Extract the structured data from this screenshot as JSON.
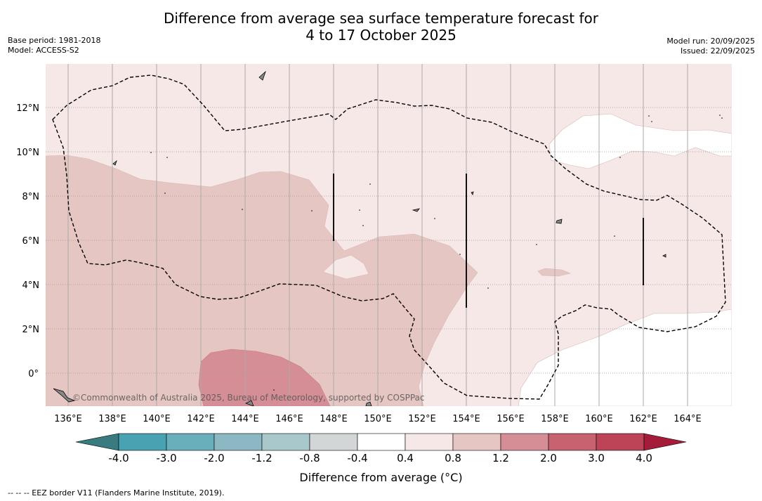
{
  "title": {
    "line1": "Difference from average sea surface temperature forecast for",
    "line2": "4 to 17 October 2025"
  },
  "meta": {
    "base_period": "Base period: 1981-2018",
    "model": "Model: ACCESS-S2",
    "model_run": "Model run: 20/09/2025",
    "issued": "Issued: 22/09/2025"
  },
  "map": {
    "lat_labels": [
      "12°N",
      "10°N",
      "8°N",
      "6°N",
      "4°N",
      "2°N",
      "0°"
    ],
    "lon_labels": [
      "136°E",
      "138°E",
      "140°E",
      "142°E",
      "144°E",
      "146°E",
      "148°E",
      "150°E",
      "152°E",
      "154°E",
      "156°E",
      "158°E",
      "160°E",
      "162°E",
      "164°E"
    ],
    "copyright": "©Commonwealth of Australia 2025, Bureau of Meteorology, supported by COSPPac",
    "colors": {
      "class_0.4_0.8": "#f5e8e6",
      "class_0.8_1.2": "#e6c6c2",
      "class_1.2_2.0": "#d68e96",
      "class_-0.4_0.4": "#ffffff",
      "eez_line": "#000000",
      "land": "#888888"
    }
  },
  "colorbar": {
    "tick_labels": [
      "-4.0",
      "-3.0",
      "-2.0",
      "-1.2",
      "-0.8",
      "-0.4",
      "0.4",
      "0.8",
      "1.2",
      "2.0",
      "3.0",
      "4.0"
    ],
    "colors": [
      "#3a7b80",
      "#49a2b2",
      "#68aebb",
      "#8bb8c3",
      "#a8c8cc",
      "#d3d6d6",
      "#ffffff",
      "#f5e8e6",
      "#e6c6c2",
      "#d68e96",
      "#c76270",
      "#bc4456",
      "#a51c3a"
    ],
    "label": "Difference from average (°C)"
  },
  "footnote": "-- -- -- EEZ border V11 (Flanders Marine Institute, 2019)."
}
